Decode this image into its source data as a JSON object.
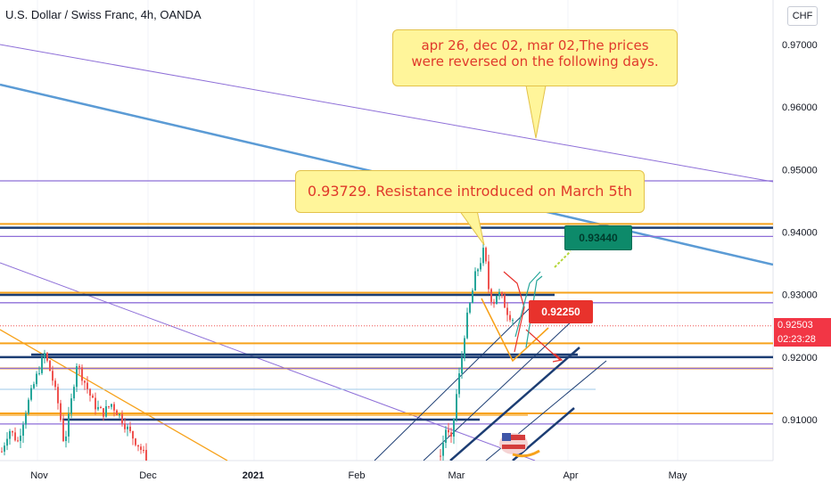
{
  "header": {
    "title": "U.S. Dollar / Swiss Franc, 4h, OANDA",
    "currency_button": "CHF"
  },
  "annotations": {
    "callout_reversal_line1": "apr 26, dec 02, mar 02,The prices",
    "callout_reversal_line2": "were reversed on the following days.",
    "callout_resistance": "0.93729. Resistance introduced on March 5th",
    "target_label": "0.93440",
    "stop_label": "0.92250"
  },
  "price_axis": {
    "current_price": "0.92503",
    "countdown": "02:23:28"
  },
  "colors": {
    "orange": "#f7a21b",
    "navy": "#1c3d73",
    "purple": "#8e6fd8",
    "steel_blue": "#5b9bd5",
    "up_candle": "#26a69a",
    "down_candle": "#ef5350",
    "callout_fill": "#fff59a",
    "callout_text": "#e0392b"
  },
  "chart_data": {
    "type": "candlestick",
    "symbol": "USDCHF",
    "timeframe": "4h",
    "x_ticks": [
      "Nov",
      "Dec",
      "2021",
      "Feb",
      "Mar",
      "Apr",
      "May"
    ],
    "y_ticks": [
      "0.97000",
      "0.96000",
      "0.95000",
      "0.94000",
      "0.93000",
      "0.92000",
      "0.91000"
    ],
    "ylim": [
      0.9045,
      0.976
    ],
    "price_path": [
      [
        0,
        0.904
      ],
      [
        10,
        0.9085
      ],
      [
        20,
        0.9065
      ],
      [
        30,
        0.912
      ],
      [
        40,
        0.9165
      ],
      [
        50,
        0.9205
      ],
      [
        58,
        0.917
      ],
      [
        66,
        0.912
      ],
      [
        72,
        0.906
      ],
      [
        78,
        0.911
      ],
      [
        86,
        0.919
      ],
      [
        95,
        0.916
      ],
      [
        105,
        0.9125
      ],
      [
        115,
        0.911
      ],
      [
        125,
        0.9125
      ],
      [
        135,
        0.9105
      ],
      [
        145,
        0.908
      ],
      [
        155,
        0.906
      ],
      [
        165,
        0.9035
      ],
      [
        493,
        0.9035
      ],
      [
        500,
        0.9085
      ],
      [
        506,
        0.9065
      ],
      [
        512,
        0.914
      ],
      [
        518,
        0.92
      ],
      [
        522,
        0.925
      ],
      [
        528,
        0.929
      ],
      [
        533,
        0.933
      ],
      [
        538,
        0.935
      ],
      [
        543,
        0.9373
      ],
      [
        548,
        0.931
      ],
      [
        553,
        0.9285
      ],
      [
        558,
        0.9305
      ],
      [
        564,
        0.929
      ],
      [
        570,
        0.927
      ],
      [
        575,
        0.9262
      ]
    ],
    "horizontal_levels": [
      {
        "price": 0.9482,
        "color": "purple"
      },
      {
        "price": 0.9413,
        "color": "orange"
      },
      {
        "price": 0.9407,
        "color": "navy"
      },
      {
        "price": 0.9393,
        "color": "purple"
      },
      {
        "price": 0.9303,
        "color": "orange"
      },
      {
        "price": 0.9287,
        "color": "purple"
      },
      {
        "price": 0.925,
        "color": "red-dotted"
      },
      {
        "price": 0.9222,
        "color": "orange"
      },
      {
        "price": 0.92,
        "color": "navy"
      },
      {
        "price": 0.9182,
        "color": "orange"
      },
      {
        "price": 0.9182,
        "color": "purple"
      },
      {
        "price": 0.911,
        "color": "orange"
      },
      {
        "price": 0.9093,
        "color": "purple"
      }
    ]
  }
}
